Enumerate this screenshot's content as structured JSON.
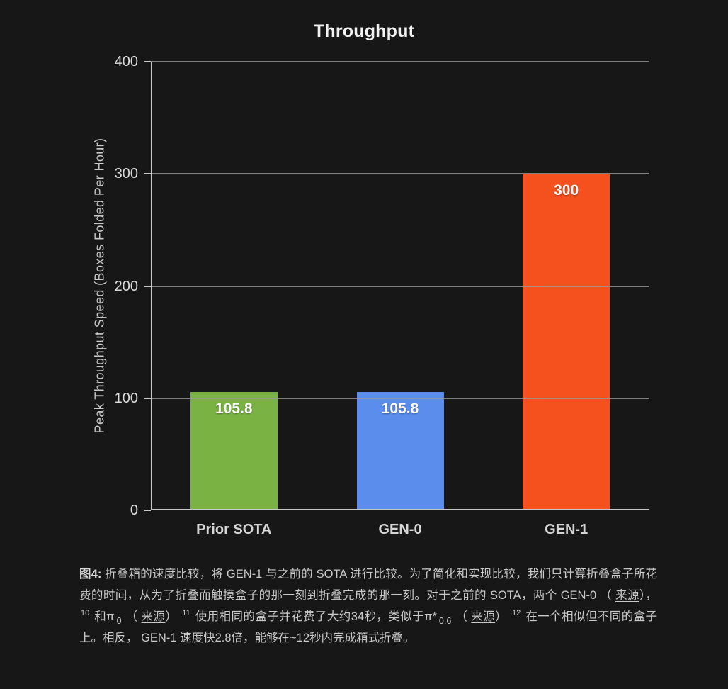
{
  "chart_data": {
    "type": "bar",
    "title": "Throughput",
    "xlabel": "",
    "ylabel": "Peak Throughput Speed (Boxes Folded Per Hour)",
    "categories": [
      "Prior SOTA",
      "GEN-0",
      "GEN-1"
    ],
    "values": [
      105.8,
      105.8,
      300
    ],
    "value_labels": [
      "105.8",
      "105.8",
      "300"
    ],
    "bar_colors": [
      "#7ab344",
      "#5b8ded",
      "#f4511e"
    ],
    "ylim": [
      0,
      400
    ],
    "yticks": [
      0,
      100,
      200,
      300,
      400
    ],
    "grid": true,
    "legend_position": "none",
    "background": "#171717",
    "grid_color": "rgba(154,154,154,0.8)",
    "axis_color": "#c8c8c8"
  },
  "caption": {
    "segments": [
      {
        "t": "b",
        "text": "图4:"
      },
      {
        "t": "txt",
        "text": " 折叠箱的速度比较，将 GEN-1 与之前的 SOTA 进行比较。为了简化和实现比较，我们只计算折叠盒子所花费的时间，从为了折叠而触摸盒子的那一刻到折叠完成的那一刻。对于之前的 SOTA，两个 GEN-0 （ "
      },
      {
        "t": "a",
        "text": "来源"
      },
      {
        "t": "txt",
        "text": "）， "
      },
      {
        "t": "sup",
        "text": "10"
      },
      {
        "t": "txt",
        "text": " 和π"
      },
      {
        "t": "sub",
        "text": "0"
      },
      {
        "t": "txt",
        "text": " （ "
      },
      {
        "t": "a",
        "text": "来源"
      },
      {
        "t": "txt",
        "text": "） "
      },
      {
        "t": "sup",
        "text": "11"
      },
      {
        "t": "txt",
        "text": " 使用相同的盒子并花费了大约34秒，类似于π*"
      },
      {
        "t": "sub",
        "text": "0.6"
      },
      {
        "t": "txt",
        "text": " （ "
      },
      {
        "t": "a",
        "text": "来源"
      },
      {
        "t": "txt",
        "text": "） "
      },
      {
        "t": "sup",
        "text": "12"
      },
      {
        "t": "txt",
        "text": " 在一个相似但不同的盒子上。相反， GEN-1 速度快2.8倍，能够在~12秒内完成箱式折叠。"
      }
    ]
  }
}
